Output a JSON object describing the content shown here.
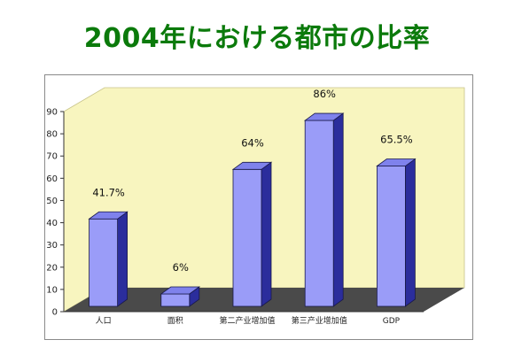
{
  "title": "2004年における都市の比率",
  "chart_data": {
    "type": "bar",
    "title": "2004年における都市の比率",
    "categories": [
      "人口",
      "面积",
      "第二产业增加值",
      "第三产业增加值",
      "GDP"
    ],
    "values": [
      41.7,
      6,
      64,
      86,
      65.5
    ],
    "data_labels": [
      "41.7%",
      "6%",
      "64%",
      "86%",
      "65.5%"
    ],
    "ylim": [
      0,
      90
    ],
    "yticks": [
      "0",
      "10",
      "20",
      "30",
      "40",
      "50",
      "60",
      "70",
      "80",
      "90"
    ],
    "xlabel": "",
    "ylabel": "",
    "grid": false,
    "legend": "none",
    "style": "3d",
    "colors": {
      "bar_front": "#9a9cf8",
      "bar_top": "#7f82ec",
      "bar_side": "#2b2d9c",
      "bar_outline": "#1a1a4a",
      "back_wall": "#f8f5bf",
      "floor": "#4a4a4a",
      "title": "#0b7a0b"
    }
  }
}
